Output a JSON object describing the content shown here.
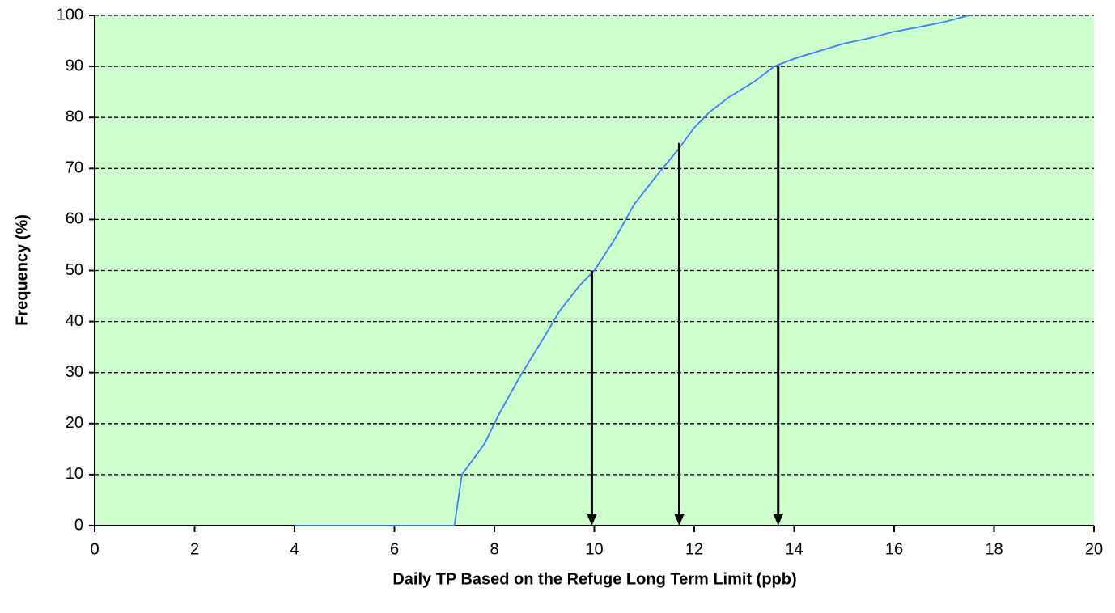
{
  "chart_data": {
    "type": "line",
    "x_label": "Daily TP Based on the Refuge Long Term Limit (ppb)",
    "y_label": "Frequency (%)",
    "series": [
      {
        "color": "#3a7fff",
        "x": [
          4,
          7.2,
          7.35,
          7.5,
          7.8,
          8.1,
          8.5,
          9.0,
          9.3,
          9.7,
          10,
          10.4,
          10.8,
          11.2,
          11.7,
          12.0,
          12.3,
          12.7,
          13.2,
          13.6,
          14,
          14.5,
          15,
          15.5,
          16,
          16.5,
          17,
          17.5
        ],
        "values": [
          0,
          0,
          10,
          12,
          16,
          22,
          29,
          37,
          42,
          47,
          50,
          56,
          63,
          68,
          74,
          78,
          81,
          84,
          87,
          90,
          91.5,
          93,
          94.5,
          95.5,
          96.8,
          97.7,
          98.7,
          100
        ]
      }
    ],
    "arrows": [
      {
        "x": 9.95,
        "y": 50
      },
      {
        "x": 11.7,
        "y": 75
      },
      {
        "x": 13.68,
        "y": 90
      }
    ],
    "xlim": [
      0,
      20
    ],
    "xticks": [
      0,
      2,
      4,
      6,
      8,
      10,
      12,
      14,
      16,
      18,
      20
    ],
    "ylim": [
      0,
      100
    ],
    "yticks": [
      0,
      10,
      20,
      30,
      40,
      50,
      60,
      70,
      80,
      90,
      100
    ],
    "grid": true,
    "background": "#ccffcc"
  }
}
